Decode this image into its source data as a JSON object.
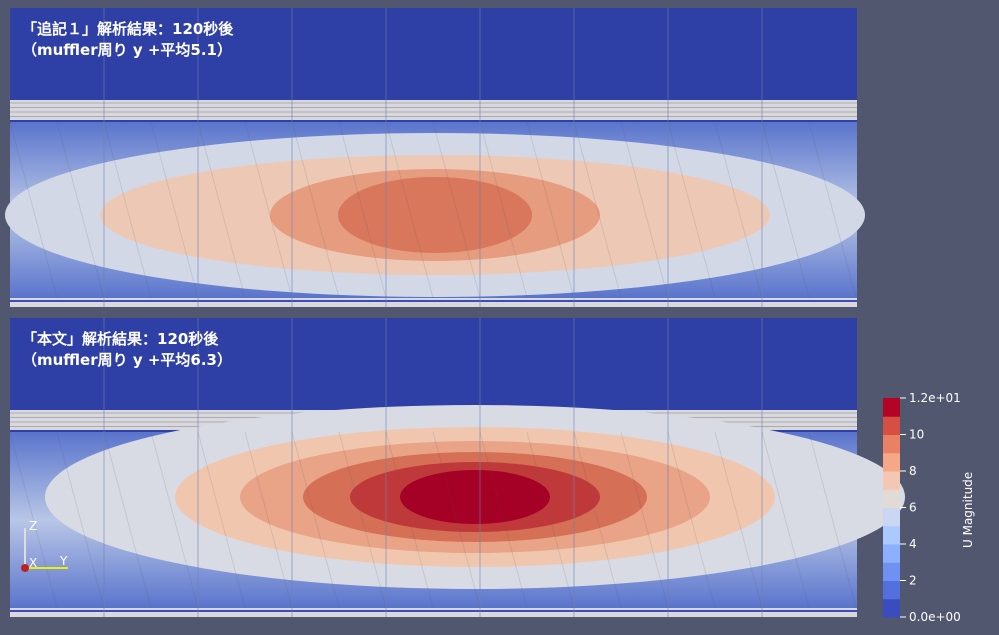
{
  "panels": [
    {
      "title_lines": [
        "「追記１」解析結果：120秒後",
        "（muffler周り y +平均5.1）"
      ]
    },
    {
      "title_lines": [
        "「本文」解析結果：120秒後",
        "（muffler周り y +平均6.3）"
      ]
    }
  ],
  "colorbar": {
    "title": "U Magnitude",
    "range": [
      0,
      12
    ],
    "ticks": [
      {
        "value": 12,
        "label": "1.2e+01"
      },
      10,
      8,
      6,
      4,
      2,
      {
        "value": 0,
        "label": "0.0e+00"
      }
    ]
  },
  "axes_triad": {
    "labels": [
      "Z",
      "X",
      "Y"
    ]
  }
}
